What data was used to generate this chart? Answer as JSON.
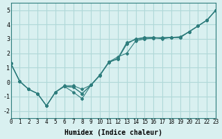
{
  "xlabel": "Humidex (Indice chaleur)",
  "ylabel": "",
  "xlim": [
    0,
    23
  ],
  "ylim": [
    -2.5,
    5.5
  ],
  "xticks": [
    0,
    1,
    2,
    3,
    4,
    5,
    6,
    7,
    8,
    9,
    10,
    11,
    12,
    13,
    14,
    15,
    16,
    17,
    18,
    19,
    20,
    21,
    22,
    23
  ],
  "yticks": [
    -2,
    -1,
    0,
    1,
    2,
    3,
    4,
    5
  ],
  "bg_color": "#d9f0f0",
  "grid_color": "#b0d8d8",
  "line_color": "#2e7d7d",
  "series": [
    {
      "x": [
        0,
        1,
        2,
        3,
        4,
        5,
        6,
        7,
        8,
        9,
        10,
        11,
        12,
        13,
        14,
        15,
        16,
        17,
        18,
        19,
        20,
        21,
        22,
        23
      ],
      "y": [
        1.3,
        0.05,
        -0.5,
        -0.8,
        -1.65,
        -0.7,
        -0.3,
        -0.35,
        -0.8,
        -0.2,
        0.5,
        1.4,
        1.6,
        2.65,
        3.0,
        3.1,
        3.1,
        3.0,
        3.1,
        3.1,
        3.5,
        3.9,
        4.3,
        5.0
      ]
    },
    {
      "x": [
        0,
        1,
        2,
        3,
        4,
        5,
        6,
        7,
        8,
        9,
        10,
        11,
        12,
        13,
        14,
        15,
        16,
        17,
        18,
        19,
        20,
        21,
        22,
        23
      ],
      "y": [
        1.3,
        0.05,
        -0.5,
        -0.8,
        -1.65,
        -0.7,
        -0.3,
        -0.7,
        -1.15,
        -0.2,
        0.5,
        1.4,
        1.75,
        2.0,
        2.85,
        3.0,
        3.05,
        3.1,
        3.1,
        3.1,
        3.5,
        3.9,
        4.3,
        5.0
      ]
    },
    {
      "x": [
        0,
        1,
        2,
        3,
        4,
        5,
        6,
        7,
        8,
        9,
        10,
        11,
        12,
        13,
        14,
        15,
        16,
        17,
        18,
        19,
        20,
        21,
        22,
        23
      ],
      "y": [
        1.3,
        0.05,
        -0.5,
        -0.8,
        -1.65,
        -0.7,
        -0.3,
        -0.35,
        -0.8,
        -0.2,
        0.45,
        1.4,
        1.6,
        2.65,
        3.0,
        3.0,
        3.05,
        3.05,
        3.1,
        3.1,
        3.5,
        3.9,
        4.3,
        5.0
      ]
    },
    {
      "x": [
        0,
        1,
        2,
        3,
        4,
        5,
        6,
        7,
        8,
        9,
        10,
        11,
        12,
        13,
        14,
        15,
        16,
        17,
        18,
        19,
        20,
        21,
        22,
        23
      ],
      "y": [
        1.3,
        0.05,
        -0.5,
        -0.8,
        -1.65,
        -0.7,
        -0.25,
        -0.25,
        -0.5,
        -0.2,
        0.5,
        1.35,
        1.65,
        2.75,
        2.95,
        3.1,
        3.1,
        3.05,
        3.1,
        3.15,
        3.5,
        3.9,
        4.3,
        5.0
      ]
    }
  ]
}
